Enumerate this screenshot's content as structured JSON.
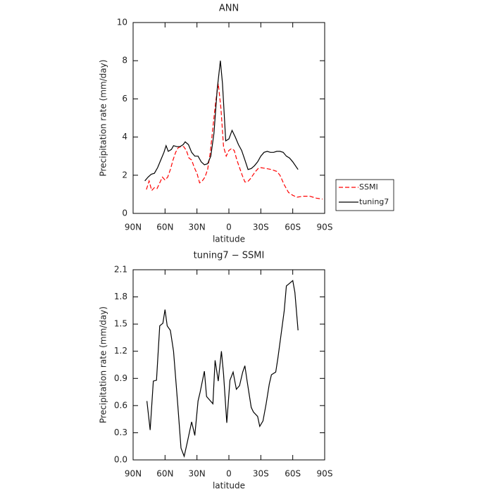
{
  "chart_data": [
    {
      "type": "line",
      "title": "ANN",
      "xlabel": "latitude",
      "ylabel": "Precipitation rate  (mm/day)",
      "xlim": [
        90,
        -90
      ],
      "xticks": [
        {
          "value": 90,
          "label": "90N"
        },
        {
          "value": 60,
          "label": "60N"
        },
        {
          "value": 30,
          "label": "30N"
        },
        0,
        {
          "value": -30,
          "label": "30S"
        },
        {
          "value": -60,
          "label": "60S"
        },
        {
          "value": -90,
          "label": "90S"
        }
      ],
      "ylim": [
        0,
        10
      ],
      "yticks": [
        0,
        2,
        4,
        6,
        8,
        10
      ],
      "legend": "outside right",
      "series": [
        {
          "name": "SSMI",
          "color": "#ff0000",
          "dash": true,
          "x": [
            77.5,
            75,
            72.5,
            70,
            67.5,
            65,
            62.5,
            60,
            57.5,
            55,
            52.5,
            50,
            47.5,
            45,
            42.5,
            40,
            37.5,
            35,
            32.5,
            30,
            27.5,
            25,
            22.5,
            20,
            17.5,
            15,
            12.5,
            10,
            7.5,
            5,
            2.5,
            0,
            -2.5,
            -5,
            -7.5,
            -10,
            -12.5,
            -15,
            -17.5,
            -20,
            -22.5,
            -25,
            -27.5,
            -30,
            -35,
            -40,
            -45,
            -48,
            -52,
            -56,
            -60,
            -64,
            -70,
            -76,
            -82,
            -88
          ],
          "values": [
            1.25,
            1.7,
            1.2,
            1.35,
            1.3,
            1.6,
            1.9,
            1.75,
            1.9,
            2.3,
            2.8,
            3.2,
            3.45,
            3.5,
            3.5,
            3.3,
            2.9,
            2.8,
            2.4,
            2.1,
            1.6,
            1.7,
            1.9,
            2.3,
            3.2,
            4.5,
            5.8,
            6.8,
            5.5,
            3.5,
            3.0,
            3.3,
            3.4,
            3.3,
            2.8,
            2.4,
            2.0,
            1.65,
            1.65,
            1.8,
            2.0,
            2.2,
            2.35,
            2.4,
            2.35,
            2.3,
            2.2,
            2.0,
            1.5,
            1.1,
            0.95,
            0.85,
            0.9,
            0.9,
            0.8,
            0.75
          ]
        },
        {
          "name": "tuning7",
          "color": "#000000",
          "dash": false,
          "x": [
            79,
            76,
            73,
            70,
            67,
            64,
            61,
            59,
            57,
            54,
            52,
            49,
            46,
            43,
            41,
            38,
            35,
            32,
            29,
            26,
            23,
            20,
            17,
            14,
            11,
            8,
            6,
            3,
            0,
            -3,
            -6,
            -9,
            -12,
            -15,
            -18,
            -21,
            -24,
            -27,
            -30,
            -33,
            -36,
            -39,
            -42,
            -45,
            -48,
            -51,
            -54,
            -57,
            -60,
            -65
          ],
          "values": [
            1.7,
            1.9,
            2.05,
            2.1,
            2.4,
            2.8,
            3.2,
            3.55,
            3.25,
            3.35,
            3.55,
            3.5,
            3.5,
            3.6,
            3.75,
            3.6,
            3.2,
            3.0,
            3.0,
            2.7,
            2.55,
            2.6,
            3.0,
            4.2,
            6.5,
            8.0,
            6.8,
            3.8,
            3.9,
            4.35,
            4.0,
            3.6,
            3.3,
            2.8,
            2.3,
            2.35,
            2.5,
            2.7,
            3.0,
            3.2,
            3.25,
            3.2,
            3.2,
            3.25,
            3.25,
            3.2,
            3.0,
            2.9,
            2.7,
            2.3
          ]
        }
      ]
    },
    {
      "type": "line",
      "title": "tuning7 − SSMI",
      "xlabel": "latitude",
      "ylabel": "Precipitation rate  (mm/day)",
      "xlim": [
        90,
        -90
      ],
      "xticks": [
        {
          "value": 90,
          "label": "90N"
        },
        {
          "value": 60,
          "label": "60N"
        },
        {
          "value": 30,
          "label": "30N"
        },
        0,
        {
          "value": -30,
          "label": "30S"
        },
        {
          "value": -60,
          "label": "60S"
        },
        {
          "value": -90,
          "label": "90S"
        }
      ],
      "ylim": [
        0,
        2.1
      ],
      "yticks": [
        {
          "value": 0,
          "label": "0.0"
        },
        0.3,
        0.6,
        0.9,
        1.2,
        1.5,
        1.8,
        2.1
      ],
      "series": [
        {
          "color": "#000000",
          "dash": false,
          "x": [
            77,
            74,
            71,
            68,
            65,
            62,
            60,
            58,
            55,
            52,
            48,
            45,
            42,
            39,
            35,
            32,
            29,
            27,
            23,
            21,
            18,
            15,
            13,
            10,
            7,
            5,
            2,
            -1,
            -4,
            -7,
            -10,
            -13,
            -15,
            -17,
            -21,
            -23,
            -27,
            -29,
            -32,
            -35,
            -38,
            -40,
            -44,
            -46,
            -49,
            -52,
            -54,
            -57,
            -60,
            -62,
            -65
          ],
          "values": [
            0.65,
            0.33,
            0.87,
            0.88,
            1.48,
            1.51,
            1.66,
            1.48,
            1.43,
            1.2,
            0.6,
            0.13,
            0.04,
            0.2,
            0.42,
            0.27,
            0.65,
            0.75,
            0.98,
            0.7,
            0.66,
            0.62,
            1.1,
            0.87,
            1.2,
            0.95,
            0.41,
            0.88,
            0.97,
            0.78,
            0.82,
            0.97,
            1.04,
            0.88,
            0.58,
            0.53,
            0.48,
            0.37,
            0.43,
            0.62,
            0.84,
            0.94,
            0.97,
            1.12,
            1.38,
            1.65,
            1.92,
            1.95,
            1.98,
            1.85,
            1.43
          ]
        }
      ]
    }
  ]
}
